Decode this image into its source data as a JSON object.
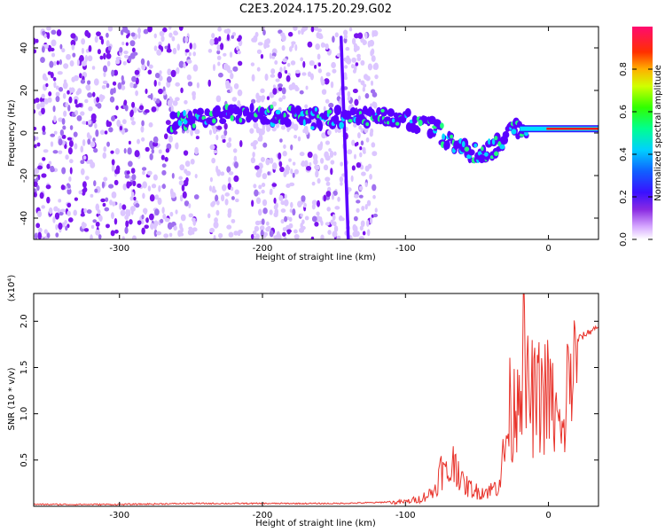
{
  "figure": {
    "title": "C2E3.2024.175.20.29.G02"
  },
  "chart_data": [
    {
      "type": "heatmap",
      "xlabel": "Height of straight line (km)",
      "ylabel": "Frequency (Hz)",
      "xlim": [
        -360,
        35
      ],
      "ylim": [
        -50,
        50
      ],
      "xticks": [
        -300,
        -200,
        -100,
        0
      ],
      "yticks": [
        -40,
        -20,
        0,
        20,
        40
      ],
      "colorbar": {
        "label": "Normalized spectral amplitude",
        "range": [
          0.0,
          1.0
        ],
        "ticks": [
          0.0,
          0.2,
          0.4,
          0.6,
          0.8
        ]
      },
      "colors": {
        "low": "#d8b8ff",
        "mid_low": "#8a2be2",
        "mid": "#5a00ff",
        "high": "#ff1a1a"
      },
      "features": [
        {
          "name": "scattered-noise",
          "x_range": [
            -360,
            -120
          ],
          "freq_range": [
            -50,
            50
          ],
          "amplitude": 0.1
        },
        {
          "name": "carrier-trace",
          "points": [
            [
              -265,
              5
            ],
            [
              -230,
              8
            ],
            [
              -200,
              8
            ],
            [
              -160,
              7
            ],
            [
              -125,
              7
            ],
            [
              -100,
              6
            ],
            [
              -80,
              2
            ],
            [
              -60,
              -8
            ],
            [
              -45,
              -10
            ],
            [
              -30,
              -2
            ],
            [
              -20,
              2
            ],
            [
              -10,
              2
            ],
            [
              0,
              2
            ],
            [
              35,
              2
            ]
          ]
        },
        {
          "name": "diagonal-streak",
          "points": [
            [
              -140,
              -50
            ],
            [
              -145,
              45
            ]
          ]
        }
      ]
    },
    {
      "type": "line",
      "xlabel": "Height of straight line (km)",
      "ylabel": "SNR (10 * v/v)",
      "y_multiplier": "(x10⁴)",
      "xlim": [
        -360,
        35
      ],
      "ylim": [
        0,
        2.3
      ],
      "xticks": [
        -300,
        -200,
        -100,
        0
      ],
      "yticks": [
        0.5,
        1.0,
        1.5,
        2.0
      ],
      "color": "#e8332b",
      "series": [
        {
          "x": [
            -360,
            -300,
            -250,
            -200,
            -150,
            -120,
            -100,
            -90,
            -80,
            -75,
            -70,
            -65,
            -60,
            -55,
            -50,
            -45,
            -40,
            -35,
            -30,
            -27,
            -25,
            -22,
            -20,
            -18,
            -15,
            -12,
            -10,
            -5,
            0,
            5,
            8,
            10,
            12,
            15,
            20,
            25,
            30,
            35
          ],
          "y": [
            0.02,
            0.02,
            0.03,
            0.03,
            0.03,
            0.04,
            0.06,
            0.1,
            0.2,
            0.5,
            0.4,
            0.65,
            0.3,
            0.25,
            0.2,
            0.2,
            0.22,
            0.3,
            0.8,
            1.3,
            1.1,
            1.7,
            1.8,
            2.2,
            1.5,
            1.5,
            1.4,
            1.5,
            1.5,
            1.2,
            1.0,
            0.8,
            1.4,
            1.8,
            1.8,
            1.85,
            1.9,
            1.95
          ]
        }
      ]
    }
  ]
}
